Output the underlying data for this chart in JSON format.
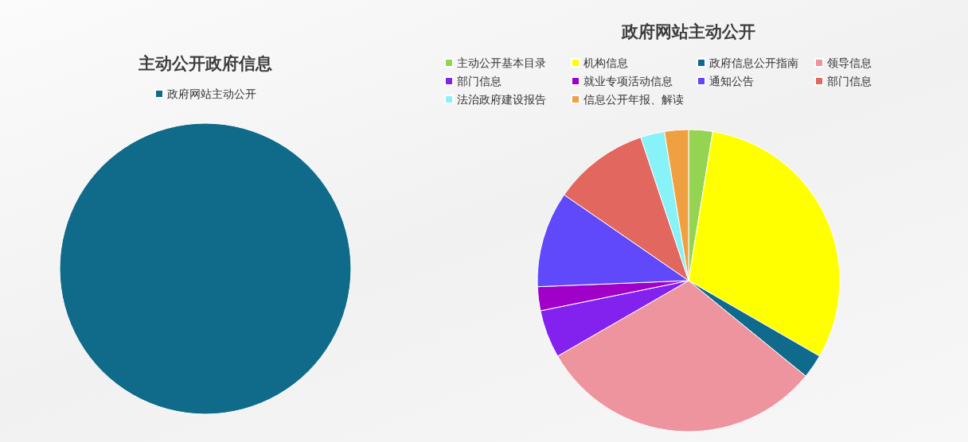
{
  "chart_data": [
    {
      "type": "pie",
      "title": "主动公开政府信息",
      "categories": [
        "政府网站主动公开"
      ],
      "values": [
        100
      ],
      "colors": [
        "#106a8a"
      ],
      "legend": "top"
    },
    {
      "type": "pie",
      "title": "政府网站主动公开",
      "categories": [
        "主动公开基本目录",
        "机构信息",
        "政府信息公开指南",
        "领导信息",
        "部门信息",
        "就业专项活动信息",
        "通知公告",
        "部门信息",
        "法治政府建设报告",
        "信息公开年报、解读"
      ],
      "values": [
        2.56,
        30.77,
        2.56,
        30.77,
        5.13,
        2.56,
        10.26,
        10.26,
        2.56,
        2.56
      ],
      "colors": [
        "#95d352",
        "#ffff00",
        "#0f6a8b",
        "#ee949f",
        "#8322ee",
        "#a000c8",
        "#6048fb",
        "#e1675f",
        "#87f2f7",
        "#f0a040"
      ],
      "legend": "top"
    }
  ]
}
